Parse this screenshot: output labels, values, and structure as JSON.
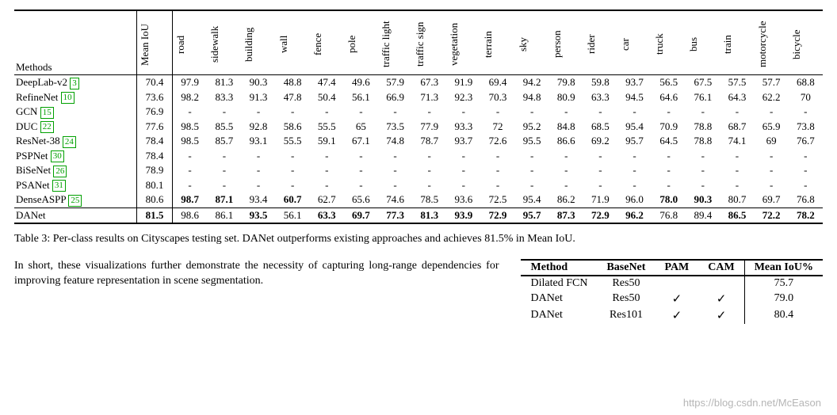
{
  "table3": {
    "header_methods": "Methods",
    "vert_headers": [
      "Mean IoU",
      "road",
      "sidewalk",
      "building",
      "wall",
      "fence",
      "pole",
      "traffic light",
      "traffic sign",
      "vegetation",
      "terrain",
      "sky",
      "person",
      "rider",
      "car",
      "truck",
      "bus",
      "train",
      "motorcycle",
      "bicycle"
    ],
    "rows": [
      {
        "method": "DeepLab-v2",
        "cite": "3",
        "vals": [
          "70.4",
          "97.9",
          "81.3",
          "90.3",
          "48.8",
          "47.4",
          "49.6",
          "57.9",
          "67.3",
          "91.9",
          "69.4",
          "94.2",
          "79.8",
          "59.8",
          "93.7",
          "56.5",
          "67.5",
          "57.5",
          "57.7",
          "68.8"
        ],
        "bold": []
      },
      {
        "method": "RefineNet",
        "cite": "10",
        "vals": [
          "73.6",
          "98.2",
          "83.3",
          "91.3",
          "47.8",
          "50.4",
          "56.1",
          "66.9",
          "71.3",
          "92.3",
          "70.3",
          "94.8",
          "80.9",
          "63.3",
          "94.5",
          "64.6",
          "76.1",
          "64.3",
          "62.2",
          "70"
        ],
        "bold": []
      },
      {
        "method": "GCN",
        "cite": "15",
        "vals": [
          "76.9",
          "-",
          "-",
          "-",
          "-",
          "-",
          "-",
          "-",
          "-",
          "-",
          "-",
          "-",
          "-",
          "-",
          "-",
          "-",
          "-",
          "-",
          "-",
          "-"
        ],
        "bold": []
      },
      {
        "method": "DUC",
        "cite": "22",
        "vals": [
          "77.6",
          "98.5",
          "85.5",
          "92.8",
          "58.6",
          "55.5",
          "65",
          "73.5",
          "77.9",
          "93.3",
          "72",
          "95.2",
          "84.8",
          "68.5",
          "95.4",
          "70.9",
          "78.8",
          "68.7",
          "65.9",
          "73.8"
        ],
        "bold": []
      },
      {
        "method": "ResNet-38",
        "cite": "24",
        "vals": [
          "78.4",
          "98.5",
          "85.7",
          "93.1",
          "55.5",
          "59.1",
          "67.1",
          "74.8",
          "78.7",
          "93.7",
          "72.6",
          "95.5",
          "86.6",
          "69.2",
          "95.7",
          "64.5",
          "78.8",
          "74.1",
          "69",
          "76.7"
        ],
        "bold": []
      },
      {
        "method": "PSPNet",
        "cite": "30",
        "vals": [
          "78.4",
          "-",
          "-",
          "-",
          "-",
          "-",
          "-",
          "-",
          "-",
          "-",
          "-",
          "-",
          "-",
          "-",
          "-",
          "-",
          "-",
          "-",
          "-",
          "-"
        ],
        "bold": []
      },
      {
        "method": "BiSeNet",
        "cite": "26",
        "vals": [
          "78.9",
          "-",
          "-",
          "-",
          "-",
          "-",
          "-",
          "-",
          "-",
          "-",
          "-",
          "-",
          "-",
          "-",
          "-",
          "-",
          "-",
          "-",
          "-",
          "-"
        ],
        "bold": []
      },
      {
        "method": "PSANet",
        "cite": "31",
        "vals": [
          "80.1",
          "-",
          "-",
          "-",
          "-",
          "-",
          "-",
          "-",
          "-",
          "-",
          "-",
          "-",
          "-",
          "-",
          "-",
          "-",
          "-",
          "-",
          "-",
          "-"
        ],
        "bold": []
      },
      {
        "method": "DenseASPP",
        "cite": "25",
        "vals": [
          "80.6",
          "98.7",
          "87.1",
          "93.4",
          "60.7",
          "62.7",
          "65.6",
          "74.6",
          "78.5",
          "93.6",
          "72.5",
          "95.4",
          "86.2",
          "71.9",
          "96.0",
          "78.0",
          "90.3",
          "80.7",
          "69.7",
          "76.8"
        ],
        "bold": [
          1,
          2,
          4,
          15,
          16
        ]
      },
      {
        "method": "DANet",
        "cite": "",
        "vals": [
          "81.5",
          "98.6",
          "86.1",
          "93.5",
          "56.1",
          "63.3",
          "69.7",
          "77.3",
          "81.3",
          "93.9",
          "72.9",
          "95.7",
          "87.3",
          "72.9",
          "96.2",
          "76.8",
          "89.4",
          "86.5",
          "72.2",
          "78.2"
        ],
        "bold": [
          0,
          3,
          5,
          6,
          7,
          8,
          9,
          10,
          11,
          12,
          13,
          14,
          17,
          18,
          19
        ]
      }
    ]
  },
  "caption3": "Table 3: Per-class results on Cityscapes testing set. DANet outperforms existing approaches and achieves 81.5% in Mean IoU.",
  "paragraph": "In short, these visualizations further demonstrate the necessity of capturing long-range dependencies for improving feature representation in scene segmentation.",
  "table4": {
    "headers": [
      "Method",
      "BaseNet",
      "PAM",
      "CAM",
      "Mean IoU%"
    ],
    "rows": [
      {
        "method": "Dilated FCN",
        "basenet": "Res50",
        "pam": "",
        "cam": "",
        "miou": "75.7"
      },
      {
        "method": "DANet",
        "basenet": "Res50",
        "pam": "✓",
        "cam": "✓",
        "miou": "79.0"
      },
      {
        "method": "DANet",
        "basenet": "Res101",
        "pam": "✓",
        "cam": "✓",
        "miou": "80.4"
      }
    ]
  },
  "watermark": "https://blog.csdn.net/McEason"
}
